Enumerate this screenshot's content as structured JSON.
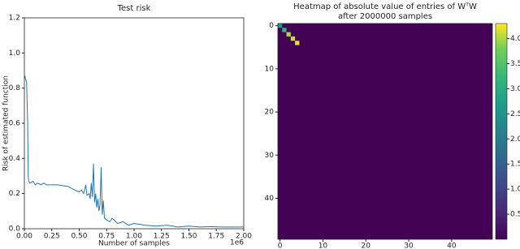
{
  "chart_data": [
    {
      "type": "line",
      "title": "Test risk",
      "xlabel": "Number of samples",
      "ylabel": "Risk of estimated function",
      "x_offset_text": "1e6",
      "xlim": [
        0,
        2.0
      ],
      "xticks": [
        {
          "value": 0,
          "label": "0.00"
        },
        {
          "value": 0.25,
          "label": "0.25"
        },
        {
          "value": 0.5,
          "label": "0.50"
        },
        {
          "value": 0.75,
          "label": "0.75"
        },
        {
          "value": 1.0,
          "label": "1.00"
        },
        {
          "value": 1.25,
          "label": "1.25"
        },
        {
          "value": 1.5,
          "label": "1.50"
        },
        {
          "value": 1.75,
          "label": "1.75"
        },
        {
          "value": 2.0,
          "label": "2.00"
        }
      ],
      "ylim": [
        0,
        1.2
      ],
      "yticks": [
        {
          "value": 0,
          "label": "0.0"
        },
        0.2,
        0.4,
        0.6,
        0.8,
        {
          "value": 1.0,
          "label": "1.0"
        },
        1.2
      ],
      "grid": false,
      "series": [
        {
          "color": "#1f77b4",
          "x": [
            0,
            0.005,
            0.01,
            0.02,
            0.03,
            0.035,
            0.04,
            0.05,
            0.08,
            0.1,
            0.12,
            0.15,
            0.18,
            0.2,
            0.25,
            0.3,
            0.35,
            0.4,
            0.43,
            0.46,
            0.5,
            0.52,
            0.54,
            0.56,
            0.57,
            0.59,
            0.6,
            0.61,
            0.62,
            0.63,
            0.64,
            0.65,
            0.66,
            0.67,
            0.68,
            0.69,
            0.7,
            0.71,
            0.72,
            0.73,
            0.75,
            0.78,
            0.8,
            0.85,
            0.9,
            0.95,
            1.0,
            1.1,
            1.2,
            1.3,
            1.4,
            1.5,
            1.6,
            1.7,
            1.8,
            1.9,
            2.0
          ],
          "values": [
            0.86,
            0.87,
            0.85,
            0.84,
            0.6,
            0.3,
            0.27,
            0.26,
            0.27,
            0.25,
            0.26,
            0.25,
            0.26,
            0.25,
            0.25,
            0.25,
            0.245,
            0.24,
            0.23,
            0.22,
            0.21,
            0.22,
            0.2,
            0.25,
            0.19,
            0.2,
            0.17,
            0.26,
            0.18,
            0.37,
            0.15,
            0.2,
            0.12,
            0.17,
            0.1,
            0.14,
            0.35,
            0.08,
            0.16,
            0.06,
            0.05,
            0.04,
            0.06,
            0.03,
            0.04,
            0.02,
            0.03,
            0.02,
            0.015,
            0.02,
            0.01,
            0.015,
            0.01,
            0.012,
            0.01,
            0.01,
            0.01
          ]
        }
      ]
    },
    {
      "type": "heatmap",
      "title": [
        "Heatmap of absolute value of entries of WᵀW",
        "after 2000000 samples"
      ],
      "colormap": "viridis",
      "xlim": [
        -0.5,
        49.5
      ],
      "ylim": [
        49.5,
        -0.5
      ],
      "xticks": [
        0,
        10,
        20,
        30,
        40
      ],
      "yticks": [
        0,
        10,
        20,
        30,
        40
      ],
      "fill_value": 0.02,
      "entries": [
        {
          "row": 0,
          "col": 0,
          "value": 2.6
        },
        {
          "row": 1,
          "col": 1,
          "value": 3.2
        },
        {
          "row": 2,
          "col": 2,
          "value": 4.0
        },
        {
          "row": 3,
          "col": 3,
          "value": 4.1
        },
        {
          "row": 4,
          "col": 4,
          "value": 4.2
        }
      ],
      "clim": [
        0,
        4.3
      ],
      "cticks": [
        0.5,
        {
          "value": 1.0,
          "label": "1.0"
        },
        1.5,
        {
          "value": 2.0,
          "label": "2.0"
        },
        2.5,
        {
          "value": 3.0,
          "label": "3.0"
        },
        3.5,
        {
          "value": 4.0,
          "label": "4.0"
        }
      ]
    }
  ]
}
